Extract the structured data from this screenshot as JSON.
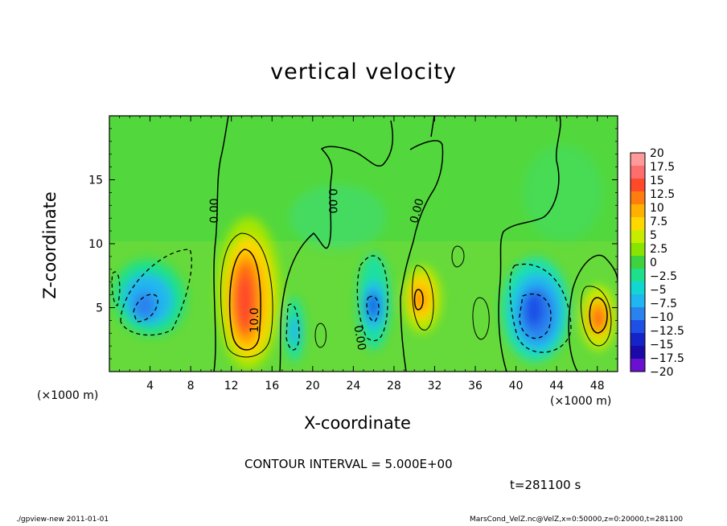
{
  "chart_data": {
    "type": "heatmap",
    "title": "vertical velocity",
    "xlabel": "X-coordinate",
    "ylabel": "Z-coordinate",
    "x_unit_note": "(×1000 m)",
    "y_unit_note": "(×1000 m)",
    "xlim": [
      0,
      50
    ],
    "ylim": [
      0,
      20
    ],
    "x_ticks": [
      "4",
      "8",
      "12",
      "16",
      "20",
      "24",
      "28",
      "32",
      "36",
      "40",
      "44",
      "48"
    ],
    "y_ticks": [
      "5",
      "10",
      "15"
    ],
    "colorbar": {
      "labels": [
        "20",
        "17.5",
        "15",
        "12.5",
        "10",
        "7.5",
        "5",
        "2.5",
        "0",
        "−2.5",
        "−5",
        "−7.5",
        "−10",
        "−12.5",
        "−15",
        "−17.5",
        "−20"
      ],
      "colors": [
        "#ff9a9a",
        "#ff6e6e",
        "#ff4a2a",
        "#ff7d0e",
        "#ffb000",
        "#ffd800",
        "#c8ec00",
        "#88e400",
        "#3ed23e",
        "#1ee08c",
        "#12d6d0",
        "#20b6f0",
        "#2a82ee",
        "#1e50e6",
        "#1424c8",
        "#1a0aa8",
        "#6a10d0"
      ]
    },
    "features": [
      {
        "kind": "updraft",
        "x": 13.5,
        "z": 5.5,
        "peak": 12.5
      },
      {
        "kind": "updraft",
        "x": 30.5,
        "z": 6,
        "peak": 7.5
      },
      {
        "kind": "updraft",
        "x": 48,
        "z": 4,
        "peak": 10
      },
      {
        "kind": "downdraft",
        "x": 4.5,
        "z": 5.5,
        "peak": -10
      },
      {
        "kind": "downdraft",
        "x": 18.5,
        "z": 3,
        "peak": -7.5
      },
      {
        "kind": "downdraft",
        "x": 26,
        "z": 5,
        "peak": -10
      },
      {
        "kind": "downdraft",
        "x": 42,
        "z": 4.5,
        "peak": -12.5
      }
    ],
    "contour_labels": [
      "0.00",
      "0.00",
      "0.00",
      "0.00",
      "10.0"
    ]
  },
  "contour_interval": "CONTOUR INTERVAL = 5.000E+00",
  "time_label": "t=281100 s",
  "footer_left": "./gpview-new  2011-01-01",
  "footer_right": "MarsCond_VelZ.nc@VelZ,x=0:50000,z=0:20000,t=281100"
}
